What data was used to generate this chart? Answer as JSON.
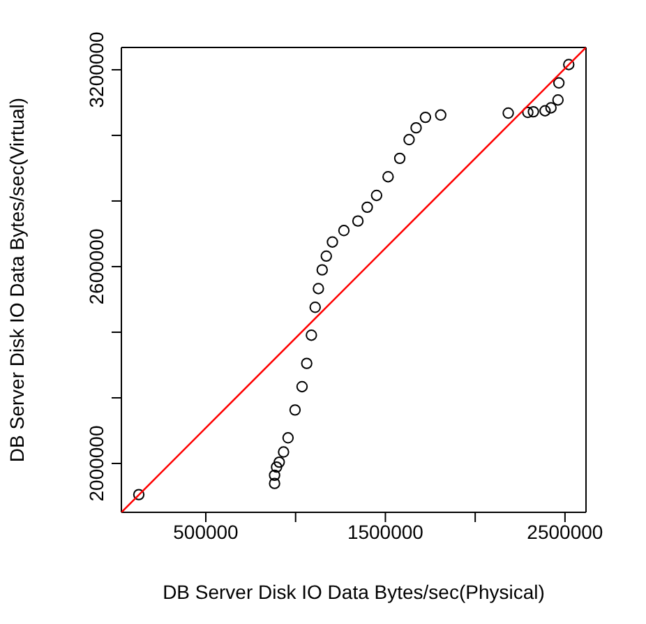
{
  "chart_data": {
    "type": "scatter",
    "xlabel": "DB Server Disk IO Data Bytes/sec(Physical)",
    "ylabel": "DB Server Disk IO Data Bytes/sec(Virtual)",
    "xlim": [
      30000,
      2617000
    ],
    "ylim": [
      1851000,
      3268000
    ],
    "xticks": [
      500000,
      {
        "value": 1000000,
        "label": null
      },
      1500000,
      {
        "value": 2000000,
        "label": null
      },
      2500000
    ],
    "yticks": [
      2000000,
      {
        "value": 2200000,
        "label": null
      },
      {
        "value": 2400000,
        "label": null
      },
      2600000,
      {
        "value": 2800000,
        "label": null
      },
      {
        "value": 3000000,
        "label": null
      },
      3200000
    ],
    "grid": false,
    "marker": "circle",
    "series": [
      {
        "color": "#000000",
        "x": [
          127000,
          883000,
          883000,
          894000,
          909000,
          933000,
          958000,
          997000,
          1036000,
          1062000,
          1088000,
          1109000,
          1127000,
          1148000,
          1171000,
          1205000,
          1269000,
          1347000,
          1399000,
          1451000,
          1515000,
          1580000,
          1632000,
          1671000,
          1723000,
          1808000,
          2184000,
          2293000,
          2324000,
          2389000,
          2422000,
          2461000,
          2466000,
          2521000
        ],
        "values": [
          1905000,
          1939000,
          1964000,
          1989000,
          2004000,
          2035000,
          2078000,
          2163000,
          2234000,
          2305000,
          2391000,
          2476000,
          2533000,
          2590000,
          2632000,
          2675000,
          2710000,
          2739000,
          2781000,
          2817000,
          2874000,
          2930000,
          2987000,
          3023000,
          3055000,
          3062000,
          3068000,
          3070000,
          3072000,
          3075000,
          3084000,
          3108000,
          3160000,
          3216000
        ]
      },
      {
        "type": "line",
        "color": "#ff0000",
        "marker": "none",
        "x": [
          30000,
          2617000
        ],
        "values": [
          1851000,
          3268000
        ]
      }
    ]
  }
}
